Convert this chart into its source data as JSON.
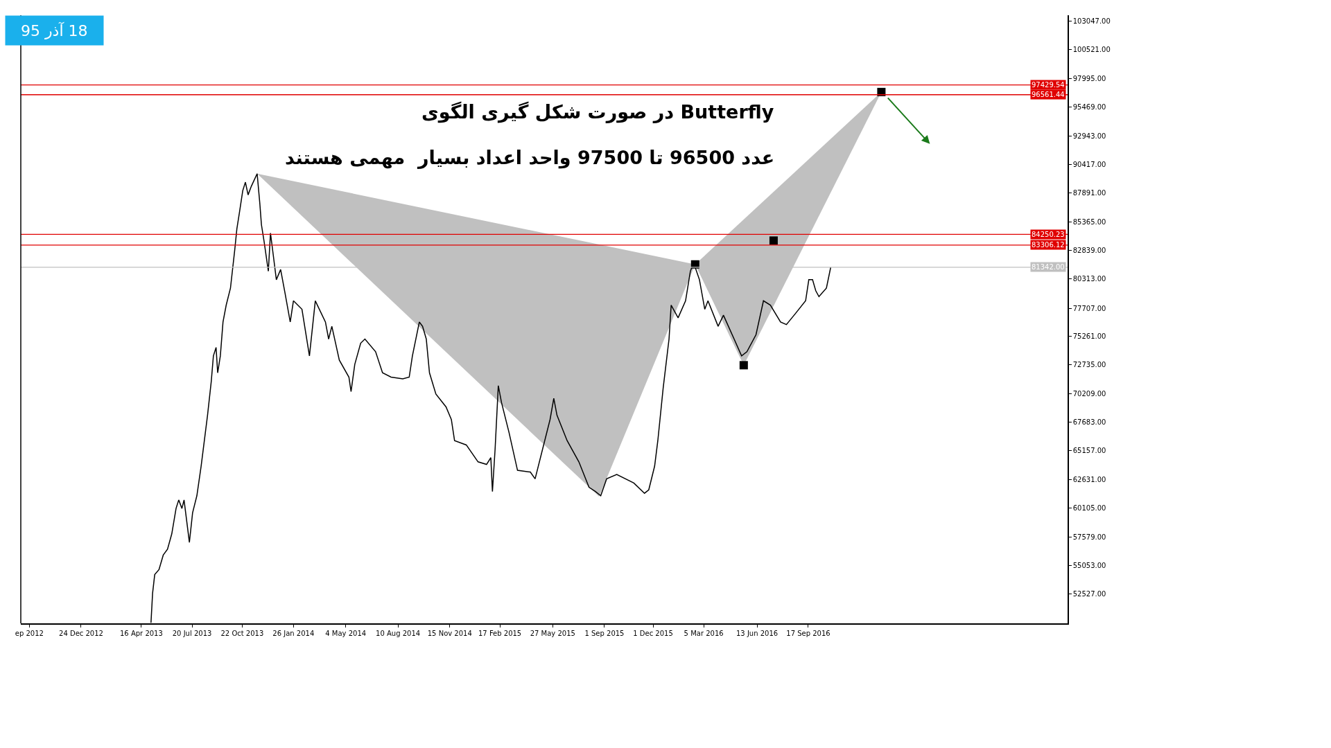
{
  "chart_data": {
    "type": "line",
    "title": "18 آذر 95",
    "annotations": [
      "در صورت شکل گیری الگوی Butterfly",
      "عدد 96500 تا 97500 واحد اعداد بسیار  مهمی هستند"
    ],
    "xlim": [
      "2012-09-02",
      "2018-01-16"
    ],
    "xticks": [
      {
        "value": "2012-09-18",
        "label": "ep 2012"
      },
      {
        "value": "2012-12-24",
        "label": "24 Dec 2012"
      },
      {
        "value": "2013-04-16",
        "label": "16 Apr 2013"
      },
      {
        "value": "2013-07-20",
        "label": "20 Jul 2013"
      },
      {
        "value": "2013-10-22",
        "label": "22 Oct 2013"
      },
      {
        "value": "2014-01-26",
        "label": "26 Jan 2014"
      },
      {
        "value": "2014-05-04",
        "label": "4 May 2014"
      },
      {
        "value": "2014-08-10",
        "label": "10 Aug 2014"
      },
      {
        "value": "2014-11-15",
        "label": "15 Nov 2014"
      },
      {
        "value": "2015-02-17",
        "label": "17 Feb 2015"
      },
      {
        "value": "2015-05-27",
        "label": "27 May 2015"
      },
      {
        "value": "2015-09-01",
        "label": "1 Sep 2015"
      },
      {
        "value": "2015-12-01",
        "label": "1 Dec 2015"
      },
      {
        "value": "2016-03-05",
        "label": "5 Mar 2016"
      },
      {
        "value": "2016-06-13",
        "label": "13 Jun 2016"
      },
      {
        "value": "2016-09-17",
        "label": "17 Sep 2016"
      }
    ],
    "ylim": [
      49950,
      103570
    ],
    "yticks": [
      {
        "value": 52527,
        "label": "52527.00"
      },
      {
        "value": 55053,
        "label": "55053.00"
      },
      {
        "value": 57579,
        "label": "57579.00"
      },
      {
        "value": 60105,
        "label": "60105.00"
      },
      {
        "value": 62631,
        "label": "62631.00"
      },
      {
        "value": 65157,
        "label": "65157.00"
      },
      {
        "value": 67683,
        "label": "67683.00"
      },
      {
        "value": 70209,
        "label": "70209.00"
      },
      {
        "value": 72735,
        "label": "72735.00"
      },
      {
        "value": 75261,
        "label": "75261.00"
      },
      {
        "value": 77707,
        "label": "77707.00"
      },
      {
        "value": 80313,
        "label": "80313.00"
      },
      {
        "value": 82839,
        "label": "82839.00"
      },
      {
        "value": 85365,
        "label": "85365.00"
      },
      {
        "value": 87891,
        "label": "87891.00"
      },
      {
        "value": 90417,
        "label": "90417.00"
      },
      {
        "value": 92943,
        "label": "92943.00"
      },
      {
        "value": 95469,
        "label": "95469.00"
      },
      {
        "value": 97995,
        "label": "97995.00"
      },
      {
        "value": 100521,
        "label": "100521.00"
      },
      {
        "value": 103047,
        "label": "103047.00"
      }
    ],
    "ref_lines": [
      {
        "axis": "y",
        "value": 97429.54,
        "label": "97429.54",
        "color": "#e00000"
      },
      {
        "axis": "y",
        "value": 96561.44,
        "label": "96561.44",
        "color": "#e00000"
      },
      {
        "axis": "y",
        "value": 84250.23,
        "label": "84250.23",
        "color": "#e00000"
      },
      {
        "axis": "y",
        "value": 83306.12,
        "label": "83306.12",
        "color": "#e00000"
      },
      {
        "axis": "y",
        "value": 81342.0,
        "label": "81342.00",
        "color": "#c0c0c0"
      }
    ],
    "series": [
      {
        "type": "area",
        "color": "#c0c0c0",
        "x": [
          "2013-11-19",
          "2015-08-22",
          "2016-02-18",
          "2013-11-19"
        ],
        "values": [
          89600,
          61120,
          81600,
          89600
        ]
      },
      {
        "type": "area",
        "color": "#c0c0c0",
        "x": [
          "2016-02-18",
          "2016-05-19",
          "2017-02-01",
          "2016-02-18"
        ],
        "values": [
          81600,
          72710,
          96800,
          81600
        ]
      },
      {
        "color": "#000000",
        "x": [
          "2013-05-04",
          "2013-05-07",
          "2013-05-11",
          "2013-05-19",
          "2013-05-27",
          "2013-06-04",
          "2013-06-12",
          "2013-06-20",
          "2013-06-25",
          "2013-07-01",
          "2013-07-05",
          "2013-07-15",
          "2013-07-21",
          "2013-07-29",
          "2013-08-06",
          "2013-08-18",
          "2013-08-25",
          "2013-08-29",
          "2013-09-03",
          "2013-09-06",
          "2013-09-11",
          "2013-09-16",
          "2013-09-22",
          "2013-09-30",
          "2013-10-08",
          "2013-10-12",
          "2013-10-17",
          "2013-10-23",
          "2013-10-28",
          "2013-11-02",
          "2013-11-08",
          "2013-11-19",
          "2013-11-24",
          "2013-11-27",
          "2013-12-02",
          "2013-12-10",
          "2013-12-14",
          "2013-12-19",
          "2013-12-25",
          "2014-01-02",
          "2014-01-10",
          "2014-01-20",
          "2014-01-26",
          "2014-02-11",
          "2014-02-25",
          "2014-03-08",
          "2014-03-27",
          "2014-04-02",
          "2014-04-08",
          "2014-04-22",
          "2014-05-10",
          "2014-05-14",
          "2014-05-21",
          "2014-06-01",
          "2014-06-09",
          "2014-06-29",
          "2014-07-12",
          "2014-07-28",
          "2014-08-19",
          "2014-08-31",
          "2014-09-06",
          "2014-09-19",
          "2014-09-25",
          "2014-10-02",
          "2014-10-08",
          "2014-10-20",
          "2014-11-08",
          "2014-11-18",
          "2014-11-24",
          "2014-12-16",
          "2015-01-07",
          "2015-01-23",
          "2015-01-31",
          "2015-02-03",
          "2015-02-08",
          "2015-02-14",
          "2015-02-20",
          "2015-03-06",
          "2015-03-22",
          "2015-04-15",
          "2015-04-24",
          "2015-05-08",
          "2015-05-22",
          "2015-05-29",
          "2015-06-04",
          "2015-06-23",
          "2015-07-15",
          "2015-08-03",
          "2015-08-15",
          "2015-08-25",
          "2015-09-05",
          "2015-09-24",
          "2015-10-26",
          "2015-11-15",
          "2015-11-23",
          "2015-12-04",
          "2015-12-10",
          "2015-12-20",
          "2015-12-31",
          "2016-01-04",
          "2016-01-17",
          "2016-01-31",
          "2016-02-09",
          "2016-02-15",
          "2016-02-26",
          "2016-03-07",
          "2016-03-13",
          "2016-04-01",
          "2016-04-11",
          "2016-05-01",
          "2016-05-15",
          "2016-05-25",
          "2016-06-11",
          "2016-06-25",
          "2016-07-08",
          "2016-07-27",
          "2016-08-07",
          "2016-08-24",
          "2016-09-12",
          "2016-09-18",
          "2016-09-25",
          "2016-10-01",
          "2016-10-07",
          "2016-10-21",
          "2016-10-29"
        ],
        "values": [
          50000,
          52600,
          54250,
          54690,
          55970,
          56490,
          57840,
          60080,
          60830,
          60080,
          60830,
          57090,
          59700,
          61200,
          63810,
          68290,
          71290,
          73530,
          74280,
          72040,
          73530,
          76520,
          78010,
          79510,
          82870,
          84740,
          86230,
          88100,
          88850,
          87730,
          88480,
          89600,
          86980,
          85110,
          83620,
          81000,
          84360,
          82500,
          80250,
          81150,
          79130,
          76520,
          78390,
          77640,
          73530,
          78390,
          76520,
          75020,
          76140,
          73160,
          71660,
          70390,
          72780,
          74650,
          75020,
          73900,
          72040,
          71660,
          71510,
          71660,
          73530,
          76520,
          76140,
          75020,
          72040,
          70170,
          69040,
          67920,
          66060,
          65680,
          64190,
          63960,
          64560,
          61570,
          65310,
          70910,
          69420,
          66800,
          63440,
          63290,
          62690,
          65310,
          67920,
          69790,
          68300,
          66060,
          64190,
          61950,
          61570,
          61200,
          62690,
          63070,
          62320,
          61420,
          61720,
          63810,
          66060,
          70690,
          75020,
          78010,
          76890,
          78390,
          81000,
          81750,
          80250,
          77640,
          78390,
          76140,
          77120,
          75020,
          73530,
          73900,
          75400,
          78390,
          78010,
          76520,
          76290,
          77270,
          78390,
          80250,
          80250,
          79280,
          78760,
          79510,
          81340
        ]
      },
      {
        "type": "scatter",
        "color": "#000000",
        "marker": "square",
        "x": [
          "2016-02-18",
          "2016-05-19",
          "2016-07-14",
          "2017-02-01"
        ],
        "values": [
          81600,
          72710,
          83700,
          96800
        ]
      }
    ]
  }
}
